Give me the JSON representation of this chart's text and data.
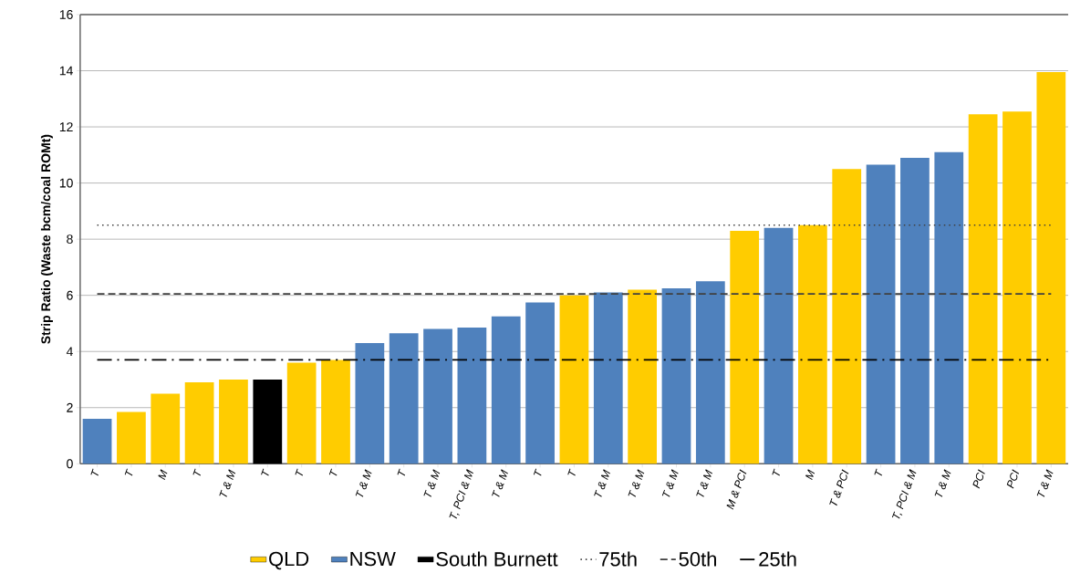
{
  "chart_data": {
    "type": "bar",
    "ylabel": "Strip Ratio (Waste bcm/coal ROMt)",
    "categories": [
      "T",
      "T",
      "M",
      "T",
      "T & M",
      "T",
      "T",
      "T",
      "T & M",
      "T",
      "T & M",
      "T, PCI & M",
      "T & M",
      "T",
      "T",
      "T & M",
      "T & M",
      "T & M",
      "T & M",
      "M & PCI",
      "T",
      "M",
      "T & PCI",
      "T",
      "T, PCI & M",
      "T & M",
      "PCI",
      "PCI",
      "T & M"
    ],
    "series": [
      {
        "name": "QLD",
        "color": "#ffcc00",
        "values": [
          null,
          1.85,
          2.5,
          2.9,
          3.0,
          null,
          3.6,
          3.7,
          null,
          null,
          null,
          null,
          null,
          null,
          6.0,
          null,
          6.2,
          null,
          null,
          8.3,
          null,
          8.5,
          10.5,
          null,
          null,
          null,
          12.45,
          12.55,
          13.95
        ]
      },
      {
        "name": "NSW",
        "color": "#4f81bd",
        "values": [
          1.6,
          null,
          null,
          null,
          null,
          null,
          null,
          null,
          4.3,
          4.65,
          4.8,
          4.85,
          5.25,
          5.75,
          null,
          6.1,
          null,
          6.25,
          6.5,
          null,
          8.4,
          null,
          null,
          10.65,
          10.9,
          11.1,
          null,
          null,
          null
        ]
      },
      {
        "name": "South Burnett",
        "color": "#000000",
        "values": [
          null,
          null,
          null,
          null,
          null,
          3.0,
          null,
          null,
          null,
          null,
          null,
          null,
          null,
          null,
          null,
          null,
          null,
          null,
          null,
          null,
          null,
          null,
          null,
          null,
          null,
          null,
          null,
          null,
          null
        ]
      }
    ],
    "ylim": [
      0,
      16
    ],
    "yticks": [
      0,
      2,
      4,
      6,
      8,
      10,
      12,
      14,
      16
    ],
    "grid": "y",
    "legend": "bottom",
    "ref_lines": [
      {
        "axis": "y",
        "value": 8.5,
        "label": "75th",
        "color": "#404040",
        "line_style": "dotted"
      },
      {
        "axis": "y",
        "value": 6.05,
        "label": "50th",
        "color": "#404040",
        "line_style": "dashed"
      },
      {
        "axis": "y",
        "value": 3.7,
        "label": "25th",
        "color": "#000000",
        "line_style": "dashdot"
      }
    ]
  }
}
